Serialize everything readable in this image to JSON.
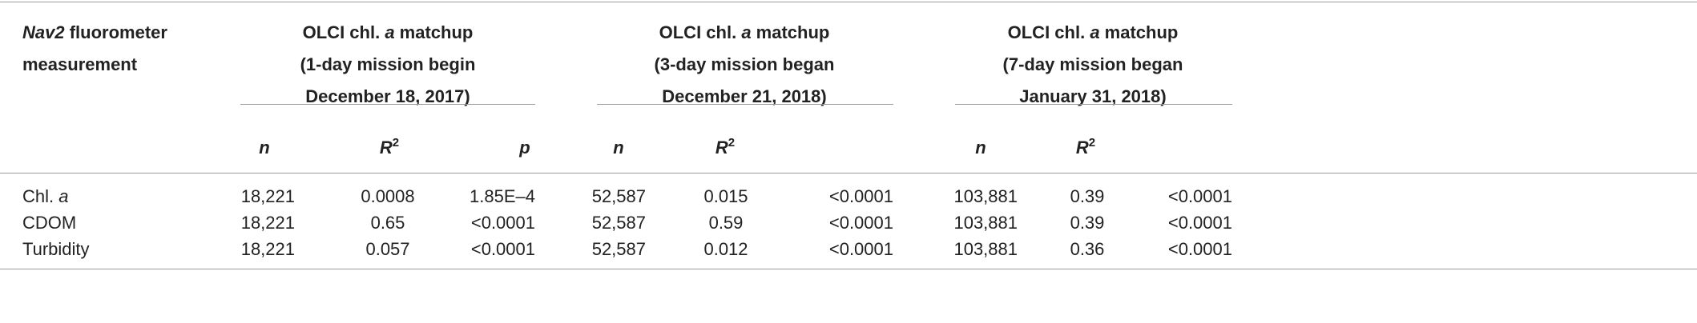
{
  "table": {
    "stub_header": {
      "line1_italic": "Nav2",
      "line1_rest": " fluorometer",
      "line2": "measurement"
    },
    "groups": [
      {
        "line1_pre": "OLCI chl. ",
        "line1_italic": "a",
        "line1_post": " matchup",
        "line2": "(1-day mission begin",
        "line3": "December 18, 2017)"
      },
      {
        "line1_pre": "OLCI chl. ",
        "line1_italic": "a",
        "line1_post": " matchup",
        "line2": "(3-day mission began",
        "line3": "December 21, 2018)"
      },
      {
        "line1_pre": "OLCI chl. ",
        "line1_italic": "a",
        "line1_post": " matchup",
        "line2": "(7-day mission began",
        "line3": "January 31, 2018)"
      }
    ],
    "subheaders": {
      "n": "n",
      "r": "R",
      "r_sup": "2",
      "p": "p"
    },
    "rows": [
      {
        "label_pre": "Chl. ",
        "label_italic": "a",
        "cells": [
          "18,221",
          "0.0008",
          "1.85E–4",
          "52,587",
          "0.015",
          "<0.0001",
          "103,881",
          "0.39",
          "<0.0001"
        ]
      },
      {
        "label_pre": "CDOM",
        "label_italic": "",
        "cells": [
          "18,221",
          "0.65",
          "<0.0001",
          "52,587",
          "0.59",
          "<0.0001",
          "103,881",
          "0.39",
          "<0.0001"
        ]
      },
      {
        "label_pre": "Turbidity",
        "label_italic": "",
        "cells": [
          "18,221",
          "0.057",
          "<0.0001",
          "52,587",
          "0.012",
          "<0.0001",
          "103,881",
          "0.36",
          "<0.0001"
        ]
      }
    ]
  }
}
